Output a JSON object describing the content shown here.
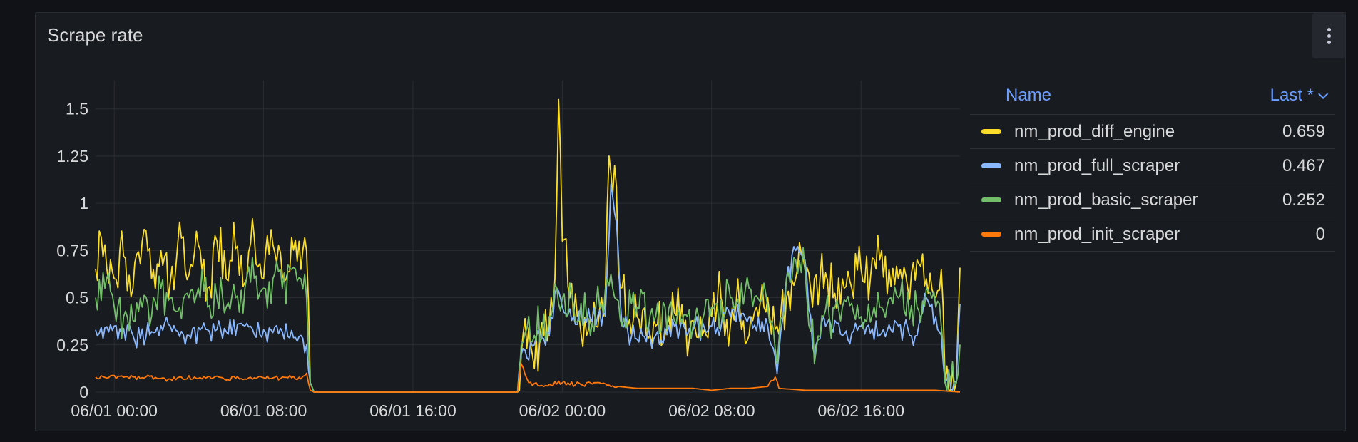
{
  "panel": {
    "title": "Scrape rate",
    "menu_icon": "kebab-menu-icon"
  },
  "legend": {
    "name_header": "Name",
    "last_header": "Last *",
    "rows": [
      {
        "name": "nm_prod_diff_engine",
        "last": "0.659",
        "color": "#fade2a"
      },
      {
        "name": "nm_prod_full_scraper",
        "last": "0.467",
        "color": "#8ab8ff"
      },
      {
        "name": "nm_prod_basic_scraper",
        "last": "0.252",
        "color": "#73bf69"
      },
      {
        "name": "nm_prod_init_scraper",
        "last": "0",
        "color": "#ff780a"
      }
    ]
  },
  "chart_data": {
    "type": "line",
    "title": "Scrape rate",
    "xlabel": "",
    "ylabel": "",
    "x_range": [
      "05/31 23:00",
      "06/02 23:20"
    ],
    "ylim": [
      0,
      1.65
    ],
    "grid": true,
    "legend_position": "right",
    "y_ticks": [
      "0",
      "0.25",
      "0.5",
      "0.75",
      "1",
      "1.25",
      "1.5"
    ],
    "y_tick_values": [
      0,
      0.25,
      0.5,
      0.75,
      1,
      1.25,
      1.5
    ],
    "x_ticks": [
      {
        "label": "06/01 00:00",
        "hours": 1
      },
      {
        "label": "06/01 08:00",
        "hours": 9
      },
      {
        "label": "06/01 16:00",
        "hours": 17
      },
      {
        "label": "06/02 00:00",
        "hours": 25
      },
      {
        "label": "06/02 08:00",
        "hours": 33
      },
      {
        "label": "06/02 16:00",
        "hours": 41
      }
    ],
    "series": [
      {
        "name": "nm_prod_diff_engine",
        "color": "#fade2a",
        "points": [
          [
            0,
            0.65
          ],
          [
            0.5,
            0.78
          ],
          [
            1,
            0.6
          ],
          [
            1.5,
            0.72
          ],
          [
            2,
            0.55
          ],
          [
            2.5,
            0.8
          ],
          [
            3,
            0.6
          ],
          [
            3.5,
            0.75
          ],
          [
            4,
            0.58
          ],
          [
            4.5,
            0.9
          ],
          [
            5,
            0.62
          ],
          [
            5.5,
            0.78
          ],
          [
            6,
            0.55
          ],
          [
            6.5,
            0.8
          ],
          [
            7,
            0.6
          ],
          [
            7.5,
            0.76
          ],
          [
            8,
            0.58
          ],
          [
            8.5,
            0.82
          ],
          [
            9,
            0.6
          ],
          [
            9.5,
            0.78
          ],
          [
            10,
            0.62
          ],
          [
            10.5,
            0.82
          ],
          [
            11,
            0.65
          ],
          [
            11.3,
            0.75
          ],
          [
            11.5,
            0.05
          ],
          [
            11.7,
            0
          ],
          [
            22.6,
            0
          ],
          [
            22.8,
            0.2
          ],
          [
            23.3,
            0.25
          ],
          [
            23.8,
            0.3
          ],
          [
            24.3,
            0.35
          ],
          [
            24.6,
            0.6
          ],
          [
            24.8,
            1.55
          ],
          [
            25.0,
            0.8
          ],
          [
            25.4,
            0.5
          ],
          [
            25.8,
            0.4
          ],
          [
            26.3,
            0.3
          ],
          [
            26.8,
            0.35
          ],
          [
            27.3,
            0.5
          ],
          [
            27.5,
            1.25
          ],
          [
            27.8,
            1.2
          ],
          [
            28.1,
            0.55
          ],
          [
            28.5,
            0.35
          ],
          [
            29,
            0.4
          ],
          [
            29.5,
            0.3
          ],
          [
            30,
            0.35
          ],
          [
            30.5,
            0.3
          ],
          [
            31,
            0.42
          ],
          [
            31.5,
            0.35
          ],
          [
            32,
            0.38
          ],
          [
            32.5,
            0.3
          ],
          [
            33,
            0.4
          ],
          [
            33.5,
            0.5
          ],
          [
            34,
            0.35
          ],
          [
            34.5,
            0.45
          ],
          [
            35,
            0.3
          ],
          [
            35.5,
            0.4
          ],
          [
            36,
            0.5
          ],
          [
            36.5,
            0.35
          ],
          [
            37,
            0.5
          ],
          [
            37.5,
            0.6
          ],
          [
            38,
            0.65
          ],
          [
            38.5,
            0.6
          ],
          [
            39,
            0.55
          ],
          [
            39.5,
            0.5
          ],
          [
            40,
            0.6
          ],
          [
            40.5,
            0.55
          ],
          [
            41,
            0.65
          ],
          [
            41.5,
            0.6
          ],
          [
            42,
            0.7
          ],
          [
            42.5,
            0.65
          ],
          [
            43,
            0.6
          ],
          [
            43.5,
            0.55
          ],
          [
            44,
            0.7
          ],
          [
            44.5,
            0.6
          ],
          [
            45,
            0.5
          ],
          [
            45.3,
            0.65
          ],
          [
            45.5,
            0.05
          ],
          [
            46.1,
            0.05
          ],
          [
            46.3,
            0.659
          ]
        ],
        "jitter": 0.18
      },
      {
        "name": "nm_prod_full_scraper",
        "color": "#8ab8ff",
        "points": [
          [
            0,
            0.33
          ],
          [
            1,
            0.35
          ],
          [
            2,
            0.3
          ],
          [
            3,
            0.32
          ],
          [
            4,
            0.35
          ],
          [
            5,
            0.3
          ],
          [
            6,
            0.33
          ],
          [
            7,
            0.32
          ],
          [
            8,
            0.35
          ],
          [
            9,
            0.33
          ],
          [
            10,
            0.32
          ],
          [
            11,
            0.3
          ],
          [
            11.3,
            0.25
          ],
          [
            11.5,
            0.05
          ],
          [
            11.7,
            0
          ],
          [
            22.6,
            0
          ],
          [
            22.8,
            0.2
          ],
          [
            23.5,
            0.25
          ],
          [
            24.3,
            0.3
          ],
          [
            24.7,
            0.55
          ],
          [
            25.0,
            0.45
          ],
          [
            25.6,
            0.4
          ],
          [
            26.5,
            0.38
          ],
          [
            27.3,
            0.4
          ],
          [
            27.6,
            1.1
          ],
          [
            27.9,
            0.9
          ],
          [
            28.2,
            0.35
          ],
          [
            29,
            0.28
          ],
          [
            30,
            0.3
          ],
          [
            31,
            0.35
          ],
          [
            32,
            0.33
          ],
          [
            33,
            0.35
          ],
          [
            34,
            0.4
          ],
          [
            35,
            0.4
          ],
          [
            36,
            0.35
          ],
          [
            36.5,
            0.1
          ],
          [
            37,
            0.6
          ],
          [
            37.5,
            0.75
          ],
          [
            38,
            0.7
          ],
          [
            38.5,
            0.2
          ],
          [
            39,
            0.4
          ],
          [
            40,
            0.3
          ],
          [
            41,
            0.35
          ],
          [
            42,
            0.3
          ],
          [
            43,
            0.35
          ],
          [
            44,
            0.3
          ],
          [
            44.5,
            0.5
          ],
          [
            45,
            0.4
          ],
          [
            45.3,
            0.3
          ],
          [
            45.5,
            0.05
          ],
          [
            46.1,
            0.05
          ],
          [
            46.3,
            0.467
          ]
        ],
        "jitter": 0.07
      },
      {
        "name": "nm_prod_basic_scraper",
        "color": "#73bf69",
        "points": [
          [
            0,
            0.5
          ],
          [
            0.5,
            0.55
          ],
          [
            1,
            0.45
          ],
          [
            1.5,
            0.4
          ],
          [
            2,
            0.38
          ],
          [
            2.5,
            0.45
          ],
          [
            3,
            0.4
          ],
          [
            3.5,
            0.55
          ],
          [
            4,
            0.5
          ],
          [
            4.5,
            0.45
          ],
          [
            5,
            0.5
          ],
          [
            5.5,
            0.55
          ],
          [
            6,
            0.45
          ],
          [
            6.5,
            0.5
          ],
          [
            7,
            0.45
          ],
          [
            7.5,
            0.5
          ],
          [
            8,
            0.55
          ],
          [
            8.5,
            0.6
          ],
          [
            9,
            0.55
          ],
          [
            9.5,
            0.6
          ],
          [
            10,
            0.55
          ],
          [
            10.5,
            0.65
          ],
          [
            11,
            0.6
          ],
          [
            11.3,
            0.5
          ],
          [
            11.5,
            0.05
          ],
          [
            11.7,
            0
          ],
          [
            22.6,
            0
          ],
          [
            22.8,
            0.25
          ],
          [
            23.5,
            0.3
          ],
          [
            24.3,
            0.4
          ],
          [
            24.7,
            0.55
          ],
          [
            25.0,
            0.5
          ],
          [
            25.6,
            0.45
          ],
          [
            26.3,
            0.4
          ],
          [
            27.0,
            0.45
          ],
          [
            27.4,
            0.6
          ],
          [
            27.8,
            0.5
          ],
          [
            28.2,
            0.35
          ],
          [
            29,
            0.45
          ],
          [
            30,
            0.4
          ],
          [
            31,
            0.38
          ],
          [
            32,
            0.35
          ],
          [
            33,
            0.45
          ],
          [
            34,
            0.5
          ],
          [
            35,
            0.55
          ],
          [
            36,
            0.45
          ],
          [
            36.5,
            0.15
          ],
          [
            37,
            0.6
          ],
          [
            37.5,
            0.7
          ],
          [
            38,
            0.65
          ],
          [
            38.5,
            0.15
          ],
          [
            39,
            0.4
          ],
          [
            40,
            0.45
          ],
          [
            41,
            0.4
          ],
          [
            42,
            0.45
          ],
          [
            43,
            0.5
          ],
          [
            44,
            0.45
          ],
          [
            44.5,
            0.55
          ],
          [
            45,
            0.45
          ],
          [
            45.3,
            0.35
          ],
          [
            45.5,
            0.05
          ],
          [
            46.1,
            0.05
          ],
          [
            46.3,
            0.252
          ]
        ],
        "jitter": 0.14
      },
      {
        "name": "nm_prod_init_scraper",
        "color": "#ff780a",
        "points": [
          [
            0,
            0.08
          ],
          [
            2,
            0.08
          ],
          [
            4,
            0.07
          ],
          [
            6,
            0.08
          ],
          [
            8,
            0.07
          ],
          [
            10,
            0.08
          ],
          [
            11,
            0.07
          ],
          [
            11.3,
            0.1
          ],
          [
            11.5,
            0.01
          ],
          [
            11.7,
            0
          ],
          [
            22.6,
            0
          ],
          [
            22.8,
            0.15
          ],
          [
            23.2,
            0.05
          ],
          [
            24,
            0.03
          ],
          [
            25,
            0.05
          ],
          [
            26,
            0.04
          ],
          [
            27,
            0.05
          ],
          [
            28,
            0.03
          ],
          [
            29,
            0.02
          ],
          [
            30,
            0.02
          ],
          [
            31,
            0.02
          ],
          [
            32,
            0.02
          ],
          [
            33,
            0.01
          ],
          [
            34,
            0.02
          ],
          [
            35,
            0.02
          ],
          [
            36,
            0.03
          ],
          [
            36.4,
            0.08
          ],
          [
            36.6,
            0.02
          ],
          [
            38,
            0.01
          ],
          [
            40,
            0.01
          ],
          [
            42,
            0.01
          ],
          [
            44,
            0.01
          ],
          [
            45,
            0.01
          ],
          [
            46.3,
            0
          ]
        ],
        "jitter": 0.015
      }
    ]
  }
}
